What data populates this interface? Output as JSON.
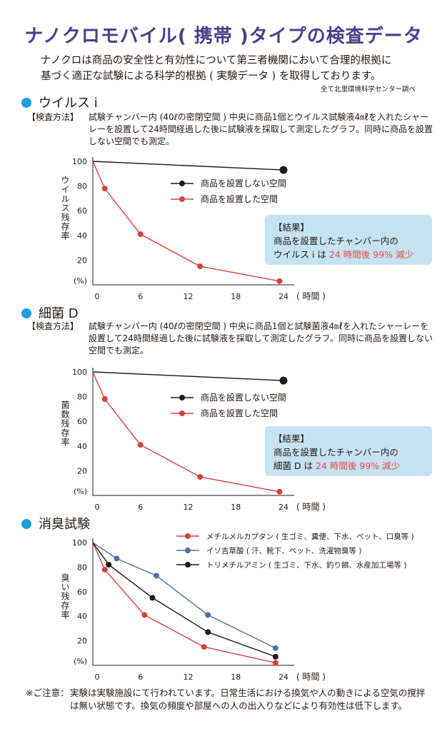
{
  "title": "ナノクロモバイル( 携帯 )タイプの検査データ",
  "intro": [
    "ナノクロは商品の安全性と有効性について第三者機関において合理的根拠に",
    "基づく適正な試験による科学的根拠 ( 実験データ ) を取得しております。"
  ],
  "credit": "全て北里環境科学センター調べ",
  "virus": {
    "heading": "ウイルス i",
    "method_label": "【検査方法】",
    "method_text": "試験チャンバー内 (40ℓの密閉空間 ) 中央に商品1個とウイルス試験液4㎖を入れたシャーレーを設置して24時間経過した後に試験液を採取して測定したグラフ。同時に商品を設置しない空間でも測定。",
    "result_title": "【結果】",
    "result_line1": "商品を設置したチャンバー内の",
    "result_prefix": "ウイルス i は ",
    "result_highlight": "24 時間後 99% 減少"
  },
  "bacteria": {
    "heading": "細菌 D",
    "method_label": "【検査方法】",
    "method_text": "試験チャンバー内 (40ℓの密閉空間 ) 中央に商品1個と試験菌液4㎖を入れたシャーレーを設置して24時間経過した後に試験液を採取して測定したグラフ。同時に商品を設置しない空間でも測定。",
    "result_title": "【結果】",
    "result_line1": "商品を設置したチャンバー内の",
    "result_prefix": "細菌 D は ",
    "result_highlight": "24 時間後 99% 減少"
  },
  "odor": {
    "heading": "消臭試験"
  },
  "note": {
    "label": "※ご注意：",
    "text": "実験は実験施設にて行われています。日常生活における換気や人の動きによる空気の撹拌は無い状態です。換気の頻度や部屋への人の出入りなどにより有効性は低下します。"
  },
  "colors": {
    "title": "#4a3f8f",
    "accent": "#1aa1dc",
    "red": "#d9403a",
    "blue": "#4d6fa3",
    "black": "#231815",
    "result_bg": "#c5e3f3"
  },
  "chart_data": [
    {
      "type": "line",
      "title": "",
      "xlabel": "( 時間 )",
      "ylabel": "ウイルス残存率",
      "yunit": "(%)",
      "xlim": [
        0,
        24
      ],
      "ylim": [
        0,
        100
      ],
      "xticks": [
        0,
        6,
        12,
        18,
        24
      ],
      "yticks": [
        20,
        40,
        60,
        80,
        100
      ],
      "series": [
        {
          "name": "商品を設置しない空間",
          "color": "#231815",
          "x": [
            0,
            24
          ],
          "y": [
            100,
            93
          ]
        },
        {
          "name": "商品を設置した空間",
          "color": "#d9403a",
          "x": [
            0,
            1.5,
            6,
            13.5,
            23.5
          ],
          "y": [
            100,
            78,
            41,
            15,
            3
          ]
        }
      ]
    },
    {
      "type": "line",
      "title": "",
      "xlabel": "( 時間 )",
      "ylabel": "菌数残存率",
      "yunit": "(%)",
      "xlim": [
        0,
        24
      ],
      "ylim": [
        0,
        100
      ],
      "xticks": [
        0,
        6,
        12,
        18,
        24
      ],
      "yticks": [
        20,
        40,
        60,
        80,
        100
      ],
      "series": [
        {
          "name": "商品を設置しない空間",
          "color": "#231815",
          "x": [
            0,
            24
          ],
          "y": [
            100,
            93
          ]
        },
        {
          "name": "商品を設置した空間",
          "color": "#d9403a",
          "x": [
            0,
            1.5,
            6,
            13.5,
            23.5
          ],
          "y": [
            100,
            78,
            41,
            15,
            3
          ]
        }
      ]
    },
    {
      "type": "line",
      "title": "",
      "xlabel": "( 時間 )",
      "ylabel": "臭い残存率",
      "yunit": "(%)",
      "xlim": [
        0,
        24
      ],
      "ylim": [
        0,
        100
      ],
      "xticks": [
        0,
        6,
        12,
        18,
        24
      ],
      "yticks": [
        20,
        40,
        60,
        80,
        100
      ],
      "series": [
        {
          "name": "メチルメルカプタン ( 生ゴミ、糞便、下水、ペット、口臭等 )",
          "color": "#d9403a",
          "x": [
            0,
            1.5,
            6.5,
            14,
            23
          ],
          "y": [
            100,
            78,
            41,
            15,
            2
          ]
        },
        {
          "name": "イソ吉草酸 ( 汗、靴下、ペット、洗濯物臭等 )",
          "color": "#4d6fa3",
          "x": [
            0,
            3,
            8,
            14.5,
            23
          ],
          "y": [
            100,
            87,
            73,
            41,
            14
          ]
        },
        {
          "name": "トリメチルアミン ( 生ゴミ、下水、釣り餌、水産加工場等 )",
          "color": "#231815",
          "x": [
            0,
            2,
            7.5,
            14.5,
            23
          ],
          "y": [
            100,
            82,
            55,
            27,
            7
          ]
        }
      ]
    }
  ]
}
